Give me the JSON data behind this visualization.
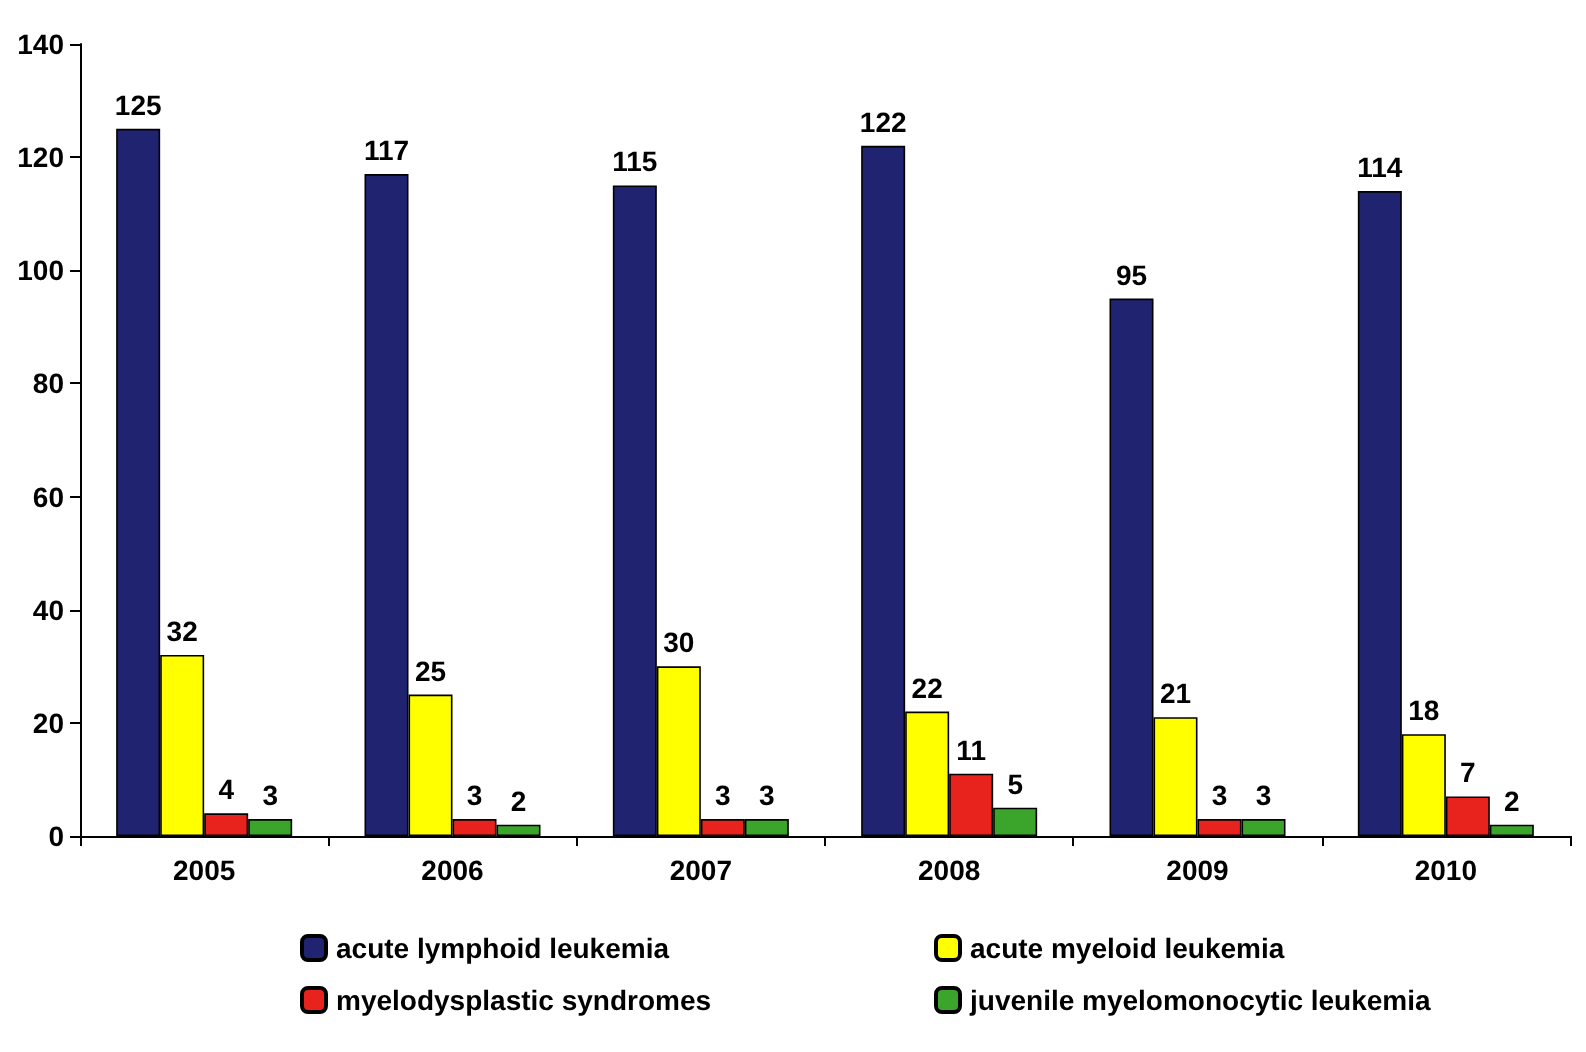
{
  "chart_data": {
    "type": "bar",
    "categories": [
      "2005",
      "2006",
      "2007",
      "2008",
      "2009",
      "2010"
    ],
    "series": [
      {
        "name": "acute lymphoid leukemia",
        "color": "#1f2370",
        "values": [
          125,
          117,
          115,
          122,
          95,
          114
        ]
      },
      {
        "name": "acute myeloid leukemia",
        "color": "#ffff00",
        "values": [
          32,
          25,
          30,
          22,
          21,
          18
        ]
      },
      {
        "name": "myelodysplastic syndromes",
        "color": "#e8221c",
        "values": [
          4,
          3,
          3,
          11,
          3,
          7
        ]
      },
      {
        "name": "juvenile myelomonocytic leukemia",
        "color": "#3aa52a",
        "values": [
          3,
          2,
          3,
          5,
          3,
          2
        ]
      }
    ],
    "ylim": [
      0,
      140
    ],
    "yticks": [
      0,
      20,
      40,
      60,
      80,
      100,
      120,
      140
    ],
    "grid": false,
    "legend": "bottom",
    "data_labels": true
  }
}
